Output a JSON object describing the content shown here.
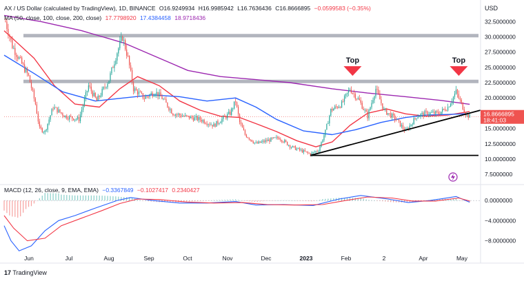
{
  "header": {
    "symbol": "AX / US Dollar (calculated by TradingView), 1D, BINANCE",
    "open": "O16.9249934",
    "high": "H16.9985942",
    "low": "L16.7636436",
    "close": "C16.8666895",
    "change": "−0.0599583 (−0.35%)",
    "ma_label": "MA (50, close, 100, close, 200, close)",
    "ma50": "17.7798920",
    "ma100": "17.4384458",
    "ma200": "18.9718436",
    "macd_label": "MACD (12, 26, close, 9, EMA, EMA)",
    "macd_vals": [
      "−0.3367849",
      "−0.1027417",
      "0.2340427"
    ]
  },
  "currency": "USD",
  "price_badge": {
    "price": "16.8666895",
    "countdown": "18:41:03"
  },
  "annotations": [
    {
      "label": "Top",
      "date_index": 0
    },
    {
      "label": "Top",
      "date_index": 1
    }
  ],
  "footer": {
    "brand": "TradingView"
  },
  "colors": {
    "ma50": "#f23645",
    "ma100": "#2962ff",
    "ma200": "#9c27b0",
    "up": "#26a69a",
    "down": "#ef5350",
    "level": "#b2b5be",
    "trend": "#000000",
    "macd": "#2962ff",
    "signal": "#f23645"
  },
  "chart_data": {
    "type": "candlestick",
    "xlabel": "",
    "ylabel": "",
    "x_ticks": [
      "Jun",
      "Jul",
      "Aug",
      "Sep",
      "Oct",
      "Nov",
      "Dec",
      "2023",
      "Feb",
      "2",
      "Apr",
      "May"
    ],
    "y_ticks": [
      "32.5000000",
      "30.0000000",
      "27.5000000",
      "25.0000000",
      "22.5000000",
      "20.0000000",
      "17.5000000",
      "15.0000000",
      "12.5000000",
      "10.0000000",
      "7.5000000"
    ],
    "ylim": [
      6.5,
      34
    ],
    "x_range": [
      "2022-05-19",
      "2023-05-04"
    ],
    "horizontal_levels": [
      30.2,
      22.7,
      10.6
    ],
    "trendline": {
      "from": [
        "2022-12-30",
        10.6
      ],
      "to": [
        "2023-05-04",
        18.0
      ]
    },
    "top_markers": [
      [
        "2023-01-30",
        24.3
      ],
      [
        "2023-04-18",
        24.3
      ]
    ],
    "price_path": [
      [
        "2022-05-20",
        32.5
      ],
      [
        "2022-05-25",
        28.5
      ],
      [
        "2022-05-31",
        26.0
      ],
      [
        "2022-06-06",
        23.5
      ],
      [
        "2022-06-11",
        19.0
      ],
      [
        "2022-06-14",
        15.0
      ],
      [
        "2022-06-18",
        14.5
      ],
      [
        "2022-06-24",
        18.5
      ],
      [
        "2022-07-03",
        17.0
      ],
      [
        "2022-07-13",
        16.5
      ],
      [
        "2022-07-20",
        22.0
      ],
      [
        "2022-07-26",
        19.5
      ],
      [
        "2022-08-04",
        23.0
      ],
      [
        "2022-08-10",
        27.5
      ],
      [
        "2022-08-14",
        30.0
      ],
      [
        "2022-08-18",
        26.5
      ],
      [
        "2022-08-22",
        21.5
      ],
      [
        "2022-08-30",
        20.0
      ],
      [
        "2022-09-07",
        21.0
      ],
      [
        "2022-09-12",
        20.0
      ],
      [
        "2022-09-20",
        17.5
      ],
      [
        "2022-09-28",
        17.0
      ],
      [
        "2022-10-10",
        16.5
      ],
      [
        "2022-10-20",
        15.5
      ],
      [
        "2022-11-01",
        17.5
      ],
      [
        "2022-11-05",
        19.5
      ],
      [
        "2022-11-08",
        16.0
      ],
      [
        "2022-11-12",
        14.0
      ],
      [
        "2022-11-20",
        12.5
      ],
      [
        "2022-11-28",
        13.0
      ],
      [
        "2022-12-07",
        13.5
      ],
      [
        "2022-12-16",
        12.0
      ],
      [
        "2022-12-30",
        10.8
      ],
      [
        "2023-01-05",
        11.5
      ],
      [
        "2023-01-10",
        14.5
      ],
      [
        "2023-01-14",
        18.0
      ],
      [
        "2023-01-22",
        19.0
      ],
      [
        "2023-01-28",
        21.5
      ],
      [
        "2023-02-04",
        19.5
      ],
      [
        "2023-02-10",
        17.0
      ],
      [
        "2023-02-16",
        21.5
      ],
      [
        "2023-02-22",
        18.0
      ],
      [
        "2023-03-03",
        16.5
      ],
      [
        "2023-03-10",
        14.5
      ],
      [
        "2023-03-18",
        17.0
      ],
      [
        "2023-03-25",
        17.5
      ],
      [
        "2023-04-03",
        17.5
      ],
      [
        "2023-04-10",
        18.5
      ],
      [
        "2023-04-16",
        21.0
      ],
      [
        "2023-04-19",
        19.5
      ],
      [
        "2023-04-23",
        17.5
      ],
      [
        "2023-04-26",
        16.9
      ]
    ],
    "series": [
      {
        "name": "MA 50",
        "points": [
          [
            "2022-05-19",
            31.0
          ],
          [
            "2022-06-10",
            26.5
          ],
          [
            "2022-06-25",
            22.0
          ],
          [
            "2022-07-10",
            19.0
          ],
          [
            "2022-07-28",
            18.5
          ],
          [
            "2022-08-12",
            21.5
          ],
          [
            "2022-08-25",
            23.5
          ],
          [
            "2022-09-10",
            22.0
          ],
          [
            "2022-09-25",
            19.5
          ],
          [
            "2022-10-10",
            18.0
          ],
          [
            "2022-10-25",
            17.0
          ],
          [
            "2022-11-08",
            16.8
          ],
          [
            "2022-11-20",
            15.8
          ],
          [
            "2022-12-05",
            14.5
          ],
          [
            "2022-12-20",
            13.0
          ],
          [
            "2023-01-03",
            12.0
          ],
          [
            "2023-01-15",
            12.8
          ],
          [
            "2023-01-28",
            15.5
          ],
          [
            "2023-02-10",
            17.5
          ],
          [
            "2023-02-24",
            18.2
          ],
          [
            "2023-03-10",
            17.4
          ],
          [
            "2023-03-25",
            17.0
          ],
          [
            "2023-04-10",
            17.2
          ],
          [
            "2023-04-26",
            17.78
          ]
        ]
      },
      {
        "name": "MA 100",
        "points": [
          [
            "2022-05-19",
            27.0
          ],
          [
            "2022-06-10",
            24.0
          ],
          [
            "2022-07-01",
            21.0
          ],
          [
            "2022-07-25",
            19.5
          ],
          [
            "2022-08-15",
            20.0
          ],
          [
            "2022-09-05",
            20.5
          ],
          [
            "2022-09-25",
            20.2
          ],
          [
            "2022-10-15",
            19.5
          ],
          [
            "2022-11-05",
            20.0
          ],
          [
            "2022-11-20",
            18.5
          ],
          [
            "2022-12-05",
            16.5
          ],
          [
            "2022-12-25",
            14.6
          ],
          [
            "2023-01-15",
            14.0
          ],
          [
            "2023-02-01",
            14.8
          ],
          [
            "2023-02-20",
            16.0
          ],
          [
            "2023-03-10",
            16.8
          ],
          [
            "2023-03-25",
            17.2
          ],
          [
            "2023-04-10",
            17.3
          ],
          [
            "2023-04-26",
            17.44
          ]
        ]
      },
      {
        "name": "MA 200",
        "points": [
          [
            "2022-05-19",
            33.5
          ],
          [
            "2022-06-15",
            32.5
          ],
          [
            "2022-07-15",
            31.0
          ],
          [
            "2022-08-15",
            29.0
          ],
          [
            "2022-09-10",
            26.5
          ],
          [
            "2022-10-01",
            24.5
          ],
          [
            "2022-10-25",
            23.5
          ],
          [
            "2022-11-20",
            23.0
          ],
          [
            "2022-12-15",
            22.5
          ],
          [
            "2023-01-15",
            21.5
          ],
          [
            "2023-02-10",
            20.8
          ],
          [
            "2023-03-10",
            20.2
          ],
          [
            "2023-04-05",
            19.6
          ],
          [
            "2023-04-26",
            18.97
          ]
        ]
      }
    ],
    "macd": {
      "y_ticks": [
        "0.0000000",
        "−4.0000000",
        "−8.0000000"
      ],
      "ylim": [
        -10.8,
        1.8
      ],
      "macd_line": [
        [
          "2022-05-19",
          -5.0
        ],
        [
          "2022-05-24",
          -8.0
        ],
        [
          "2022-05-30",
          -10.0
        ],
        [
          "2022-06-08",
          -9.0
        ],
        [
          "2022-06-18",
          -6.0
        ],
        [
          "2022-06-28",
          -4.0
        ],
        [
          "2022-07-10",
          -3.0
        ],
        [
          "2022-07-25",
          -1.5
        ],
        [
          "2022-08-10",
          0.0
        ],
        [
          "2022-08-20",
          0.6
        ],
        [
          "2022-09-05",
          0.0
        ],
        [
          "2022-09-25",
          -0.5
        ],
        [
          "2022-10-15",
          -0.5
        ],
        [
          "2022-11-05",
          -0.2
        ],
        [
          "2022-11-20",
          -0.9
        ],
        [
          "2022-12-10",
          -0.8
        ],
        [
          "2023-01-01",
          -1.0
        ],
        [
          "2023-01-20",
          0.3
        ],
        [
          "2023-02-05",
          1.0
        ],
        [
          "2023-02-25",
          0.3
        ],
        [
          "2023-03-12",
          -0.4
        ],
        [
          "2023-03-28",
          0.0
        ],
        [
          "2023-04-16",
          0.8
        ],
        [
          "2023-04-26",
          -0.34
        ]
      ],
      "signal_line": [
        [
          "2022-05-19",
          -3.0
        ],
        [
          "2022-05-26",
          -5.5
        ],
        [
          "2022-06-05",
          -8.0
        ],
        [
          "2022-06-18",
          -7.5
        ],
        [
          "2022-06-30",
          -5.0
        ],
        [
          "2022-07-15",
          -3.5
        ],
        [
          "2022-07-30",
          -2.0
        ],
        [
          "2022-08-12",
          -0.6
        ],
        [
          "2022-08-25",
          0.3
        ],
        [
          "2022-09-10",
          0.2
        ],
        [
          "2022-09-30",
          -0.3
        ],
        [
          "2022-10-20",
          -0.5
        ],
        [
          "2022-11-10",
          -0.4
        ],
        [
          "2022-11-28",
          -0.8
        ],
        [
          "2022-12-18",
          -0.9
        ],
        [
          "2023-01-08",
          -0.8
        ],
        [
          "2023-01-25",
          0.0
        ],
        [
          "2023-02-10",
          0.7
        ],
        [
          "2023-02-28",
          0.5
        ],
        [
          "2023-03-15",
          -0.1
        ],
        [
          "2023-04-01",
          -0.1
        ],
        [
          "2023-04-18",
          0.5
        ],
        [
          "2023-04-26",
          -0.1
        ]
      ]
    }
  }
}
